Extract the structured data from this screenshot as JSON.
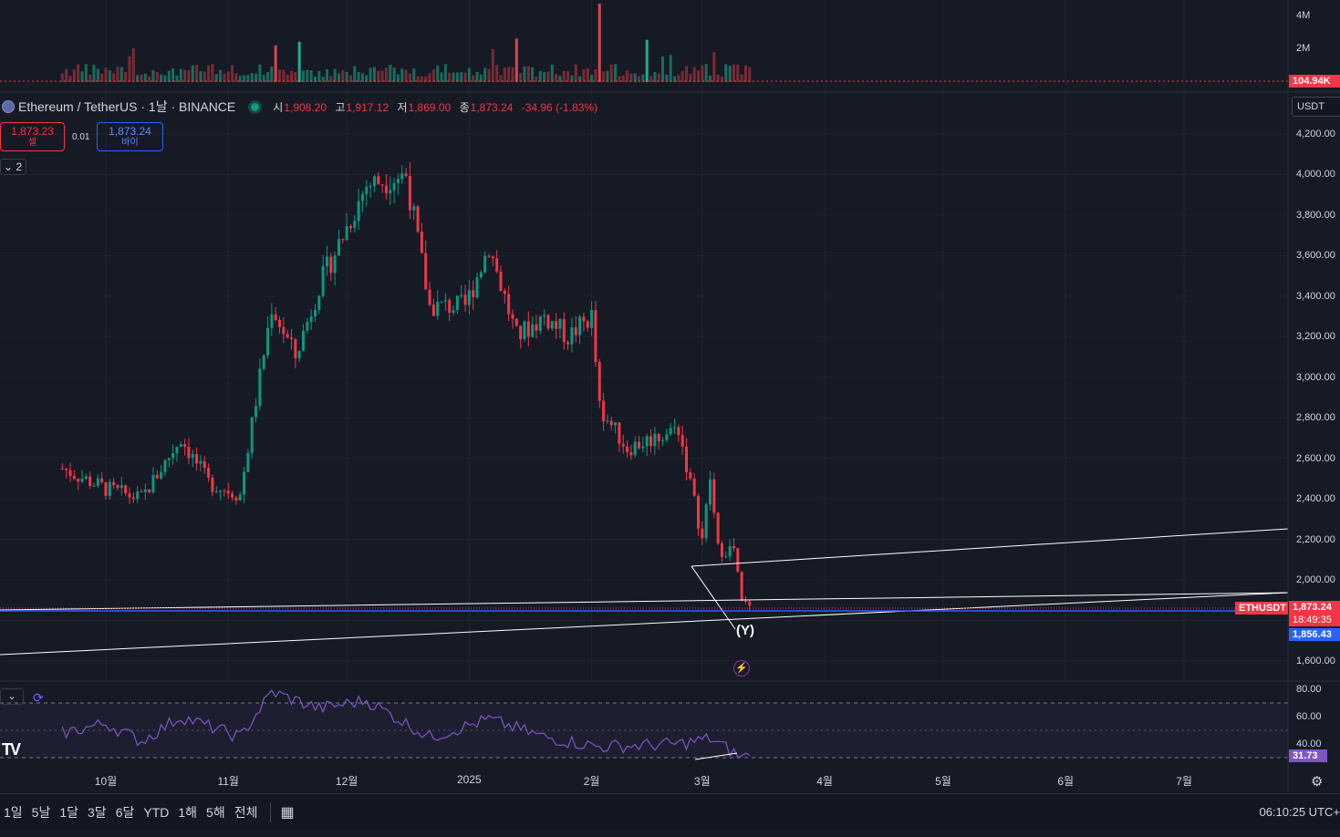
{
  "symbol": {
    "name": "Ethereum / TetherUS · 1날 · BINANCE",
    "ohlc": [
      {
        "key": "시",
        "value": "1,908.20"
      },
      {
        "key": "고",
        "value": "1,917.12"
      },
      {
        "key": "저",
        "value": "1,869.00"
      },
      {
        "key": "종",
        "value": "1,873.24"
      },
      {
        "key": "",
        "value": "-34.96 (-1.83%)"
      }
    ]
  },
  "trade": {
    "sell_price": "1,873.23",
    "sell_label": "셀",
    "spread": "0.01",
    "buy_price": "1,873.24",
    "buy_label": "바이"
  },
  "indicators_toggle": "2",
  "currency_button": "USDT",
  "colors": {
    "background": "#161a25",
    "up": "#089981",
    "down": "#f23645",
    "blue_line": "#2962ff",
    "rsi": "#7e57c2",
    "trendline": "#ffffff"
  },
  "volume_axis": [
    "4M",
    "2M"
  ],
  "volume_badge": "104.94K",
  "price_axis": [
    "4,200.00",
    "4,000.00",
    "3,800.00",
    "3,600.00",
    "3,400.00",
    "3,200.00",
    "3,000.00",
    "2,800.00",
    "2,600.00",
    "2,400.00",
    "2,200.00",
    "2,000.00",
    "1,600.00"
  ],
  "price_badges": {
    "symbol_tag": "ETHUSDT",
    "last_price": "1,873.24",
    "countdown": "18:49:35",
    "blue_price": "1,856.43"
  },
  "rsi_axis": [
    "80.00",
    "60.00",
    "40.00"
  ],
  "rsi_value": "31.73",
  "wave_label": "(Y)",
  "time_axis": [
    "10월",
    "11월",
    "12월",
    "2025",
    "2월",
    "3월",
    "4월",
    "5월",
    "6월",
    "7월"
  ],
  "ranges": [
    "1일",
    "5날",
    "1달",
    "3달",
    "6달",
    "YTD",
    "1해",
    "5해",
    "전체"
  ],
  "clock": "06:10:25 UTC+",
  "icons": [
    "eth-logo-icon",
    "market-status-icon",
    "chevron-down-icon",
    "rsi-settings-icon",
    "lightning-icon",
    "tradingview-logo-icon",
    "calendar-icon",
    "gear-icon"
  ],
  "chart_data": {
    "type": "candlestick",
    "symbol": "ETHUSDT",
    "interval": "1D",
    "y_axis": {
      "min": 1550,
      "max": 4250,
      "unit": "USDT"
    },
    "last_close": 1873.24,
    "anchors": [
      {
        "date": "2024-09-20",
        "close": 2550
      },
      {
        "date": "2024-10-01",
        "close": 2450
      },
      {
        "date": "2024-10-10",
        "close": 2400
      },
      {
        "date": "2024-10-20",
        "close": 2700
      },
      {
        "date": "2024-10-27",
        "close": 2480
      },
      {
        "date": "2024-11-04",
        "close": 2420
      },
      {
        "date": "2024-11-12",
        "close": 3350
      },
      {
        "date": "2024-11-18",
        "close": 3100
      },
      {
        "date": "2024-11-24",
        "close": 3450
      },
      {
        "date": "2024-12-06",
        "close": 3950
      },
      {
        "date": "2024-12-16",
        "close": 4000
      },
      {
        "date": "2024-12-22",
        "close": 3350
      },
      {
        "date": "2024-12-31",
        "close": 3350
      },
      {
        "date": "2025-01-06",
        "close": 3650
      },
      {
        "date": "2025-01-13",
        "close": 3200
      },
      {
        "date": "2025-01-20",
        "close": 3300
      },
      {
        "date": "2025-01-26",
        "close": 3200
      },
      {
        "date": "2025-02-01",
        "close": 3300
      },
      {
        "date": "2025-02-03",
        "close": 2850
      },
      {
        "date": "2025-02-10",
        "close": 2650
      },
      {
        "date": "2025-02-23",
        "close": 2750
      },
      {
        "date": "2025-03-01",
        "close": 2200
      },
      {
        "date": "2025-03-03",
        "close": 2500
      },
      {
        "date": "2025-03-05",
        "close": 2150
      },
      {
        "date": "2025-03-09",
        "close": 2150
      },
      {
        "date": "2025-03-11",
        "close": 1880
      },
      {
        "date": "2025-03-13",
        "close": 1873.24
      }
    ],
    "rsi": {
      "levels": [
        70,
        50,
        30
      ],
      "last": 31.73,
      "anchors": [
        {
          "date": "2024-09-20",
          "value": 48
        },
        {
          "date": "2024-10-01",
          "value": 55
        },
        {
          "date": "2024-10-10",
          "value": 42
        },
        {
          "date": "2024-10-20",
          "value": 60
        },
        {
          "date": "2024-11-04",
          "value": 45
        },
        {
          "date": "2024-11-12",
          "value": 78
        },
        {
          "date": "2024-11-24",
          "value": 66
        },
        {
          "date": "2024-12-06",
          "value": 72
        },
        {
          "date": "2024-12-22",
          "value": 45
        },
        {
          "date": "2025-01-06",
          "value": 58
        },
        {
          "date": "2025-01-20",
          "value": 45
        },
        {
          "date": "2025-02-03",
          "value": 38
        },
        {
          "date": "2025-02-23",
          "value": 40
        },
        {
          "date": "2025-03-03",
          "value": 44
        },
        {
          "date": "2025-03-11",
          "value": 30
        },
        {
          "date": "2025-03-13",
          "value": 31.73
        }
      ]
    },
    "volume": {
      "spike_date": "2025-02-03",
      "spike_value": 4800000,
      "last": 104940
    }
  }
}
